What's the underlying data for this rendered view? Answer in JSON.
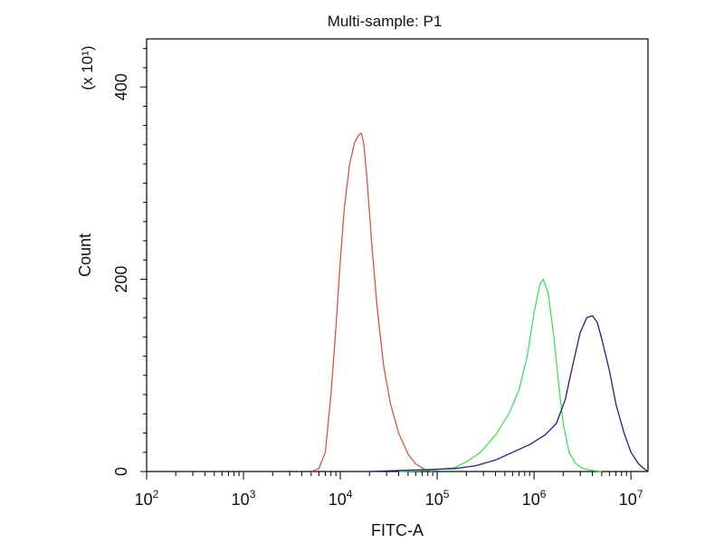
{
  "chart_data": {
    "type": "line",
    "title": "Multi-sample: P1",
    "xlabel": "FITC-A",
    "ylabel": "Count",
    "y_scale_note": "(x 10¹)",
    "x_scale": "log",
    "xlim": [
      100,
      15000000
    ],
    "ylim": [
      0,
      450
    ],
    "x_ticks": [
      {
        "value": 100,
        "base": "10",
        "exp": "2"
      },
      {
        "value": 1000,
        "base": "10",
        "exp": "3"
      },
      {
        "value": 10000,
        "base": "10",
        "exp": "4"
      },
      {
        "value": 100000,
        "base": "10",
        "exp": "5"
      },
      {
        "value": 1000000,
        "base": "10",
        "exp": "6"
      },
      {
        "value": 10000000,
        "base": "10",
        "exp": "7"
      }
    ],
    "y_ticks": [
      {
        "value": 0,
        "label": "0"
      },
      {
        "value": 200,
        "label": "200"
      },
      {
        "value": 400,
        "label": "400"
      }
    ],
    "grid": false,
    "legend": "none",
    "series": [
      {
        "color": "#d9534f",
        "points": [
          [
            5000,
            0
          ],
          [
            6000,
            3
          ],
          [
            7000,
            20
          ],
          [
            8000,
            80
          ],
          [
            9000,
            150
          ],
          [
            10000,
            220
          ],
          [
            11000,
            275
          ],
          [
            12500,
            320
          ],
          [
            14000,
            342
          ],
          [
            15500,
            350
          ],
          [
            16500,
            352
          ],
          [
            17500,
            340
          ],
          [
            19000,
            300
          ],
          [
            21000,
            240
          ],
          [
            24000,
            170
          ],
          [
            28000,
            110
          ],
          [
            33000,
            70
          ],
          [
            40000,
            40
          ],
          [
            50000,
            18
          ],
          [
            60000,
            8
          ],
          [
            75000,
            2
          ],
          [
            90000,
            0
          ]
        ]
      },
      {
        "color": "#44dd55",
        "points": [
          [
            40000,
            0
          ],
          [
            80000,
            1
          ],
          [
            100000,
            2
          ],
          [
            150000,
            4
          ],
          [
            200000,
            10
          ],
          [
            280000,
            20
          ],
          [
            400000,
            38
          ],
          [
            550000,
            60
          ],
          [
            700000,
            85
          ],
          [
            850000,
            120
          ],
          [
            1000000,
            165
          ],
          [
            1150000,
            195
          ],
          [
            1250000,
            200
          ],
          [
            1400000,
            185
          ],
          [
            1600000,
            140
          ],
          [
            1800000,
            90
          ],
          [
            2000000,
            50
          ],
          [
            2300000,
            20
          ],
          [
            2700000,
            8
          ],
          [
            3200000,
            3
          ],
          [
            4000000,
            1
          ],
          [
            5000000,
            0
          ]
        ]
      },
      {
        "color": "#1a237e",
        "points": [
          [
            20000,
            0
          ],
          [
            40000,
            1
          ],
          [
            80000,
            2
          ],
          [
            150000,
            3
          ],
          [
            250000,
            6
          ],
          [
            400000,
            12
          ],
          [
            600000,
            20
          ],
          [
            900000,
            28
          ],
          [
            1300000,
            38
          ],
          [
            1700000,
            50
          ],
          [
            2100000,
            75
          ],
          [
            2500000,
            110
          ],
          [
            3000000,
            145
          ],
          [
            3500000,
            160
          ],
          [
            4000000,
            162
          ],
          [
            4500000,
            155
          ],
          [
            5000000,
            138
          ],
          [
            6000000,
            105
          ],
          [
            7000000,
            70
          ],
          [
            8500000,
            40
          ],
          [
            10000000,
            20
          ],
          [
            12000000,
            8
          ],
          [
            14000000,
            2
          ],
          [
            15000000,
            0
          ]
        ]
      }
    ]
  }
}
